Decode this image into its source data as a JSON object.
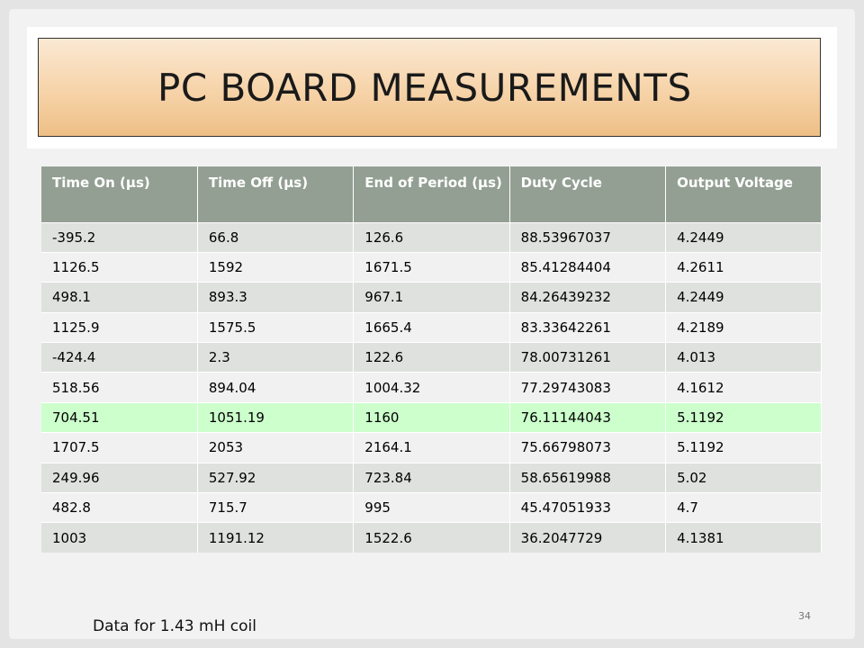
{
  "title": "PC BOARD MEASUREMENTS",
  "table": {
    "headers": [
      "Time On (µs)",
      "Time Off (µs)",
      "End of Period (µs)",
      "Duty Cycle",
      "Output Voltage"
    ],
    "rows": [
      [
        "-395.2",
        "66.8",
        "126.6",
        "88.53967037",
        "4.2449"
      ],
      [
        "1126.5",
        "1592",
        "1671.5",
        "85.41284404",
        "4.2611"
      ],
      [
        "498.1",
        "893.3",
        "967.1",
        "84.26439232",
        "4.2449"
      ],
      [
        "1125.9",
        "1575.5",
        "1665.4",
        "83.33642261",
        "4.2189"
      ],
      [
        "-424.4",
        "2.3",
        "122.6",
        "78.00731261",
        "4.013"
      ],
      [
        "518.56",
        "894.04",
        "1004.32",
        "77.29743083",
        "4.1612"
      ],
      [
        "704.51",
        "1051.19",
        "1160",
        "76.11144043",
        "5.1192"
      ],
      [
        "1707.5",
        "2053",
        "2164.1",
        "75.66798073",
        "5.1192"
      ],
      [
        "249.96",
        "527.92",
        "723.84",
        "58.65619988",
        "5.02"
      ],
      [
        "482.8",
        "715.7",
        "995",
        "45.47051933",
        "4.7"
      ],
      [
        "1003",
        "1191.12",
        "1522.6",
        "36.2047729",
        "4.1381"
      ]
    ],
    "highlighted_row_index": 6,
    "highlight_color": "#ccffcc",
    "header_color": "#939f93"
  },
  "footnote": "Data for 1.43 mH coil",
  "page_number": "34"
}
